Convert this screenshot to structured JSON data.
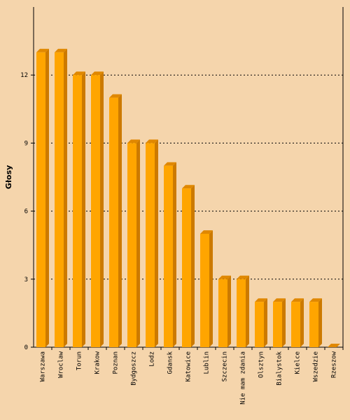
{
  "chart_data": {
    "type": "bar",
    "y_label": "Głosy",
    "categories": [
      "Warszawa",
      "Wroclaw",
      "Torun",
      "Krakow",
      "Poznan",
      "Bydgoszcz",
      "Lodz",
      "Gdansk",
      "Katowice",
      "Lublin",
      "Szczecin",
      "Nie mam zdania",
      "Olsztyn",
      "Bialystok",
      "Kielce",
      "Wszedzie",
      "Rzeszow"
    ],
    "values": [
      13,
      13,
      12,
      12,
      11,
      9,
      9,
      8,
      7,
      5,
      3,
      3,
      2,
      2,
      2,
      2,
      0
    ],
    "color": "#ffa500",
    "ylim": [
      0,
      15
    ],
    "yticks": [
      0,
      3,
      6,
      9,
      12
    ],
    "grid": true
  }
}
